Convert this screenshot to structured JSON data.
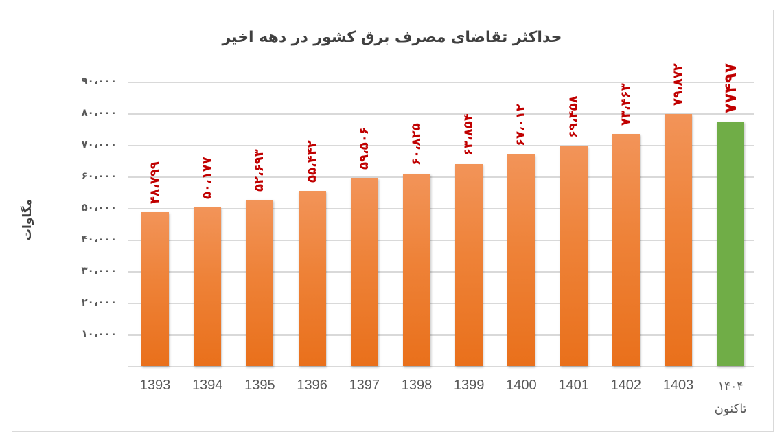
{
  "chart_data": {
    "type": "bar",
    "title": "حداکثر تقاضای مصرف برق کشور در دهه اخیر",
    "xlabel": "",
    "ylabel": "مگاوات",
    "ylim": [
      0,
      90000
    ],
    "yticks": [
      10000,
      20000,
      30000,
      40000,
      50000,
      60000,
      70000,
      80000,
      90000
    ],
    "ytick_labels": [
      "۱۰،۰۰۰",
      "۲۰،۰۰۰",
      "۳۰،۰۰۰",
      "۴۰،۰۰۰",
      "۵۰،۰۰۰",
      "۶۰،۰۰۰",
      "۷۰،۰۰۰",
      "۸۰،۰۰۰",
      "۹۰،۰۰۰"
    ],
    "grid": true,
    "legend": null,
    "categories": [
      "1393",
      "1394",
      "1395",
      "1396",
      "1397",
      "1398",
      "1399",
      "1400",
      "1401",
      "1402",
      "1403",
      "۱۴۰۴ تاکنون"
    ],
    "values": [
      48799,
      50177,
      52693,
      55442,
      59506,
      60825,
      63854,
      67012,
      69458,
      73463,
      79872,
      77497
    ],
    "data_labels": [
      "۴۸،۷۹۹",
      "۵۰،۱۷۷",
      "۵۲،۶۹۳",
      "۵۵،۴۴۲",
      "۵۹،۵۰۶",
      "۶۰،۸۲۵",
      "۶۳،۸۵۴",
      "۶۷،۰۱۲",
      "۶۹،۴۵۸",
      "۷۳،۴۶۳",
      "۷۹،۸۷۲",
      "۷۷۴۹۷"
    ],
    "bar_colors": [
      "#ED7D31",
      "#ED7D31",
      "#ED7D31",
      "#ED7D31",
      "#ED7D31",
      "#ED7D31",
      "#ED7D31",
      "#ED7D31",
      "#ED7D31",
      "#ED7D31",
      "#ED7D31",
      "#70AD47"
    ],
    "label_color": "#C00000"
  },
  "x_axis": {
    "labels": [
      "1393",
      "1394",
      "1395",
      "1396",
      "1397",
      "1398",
      "1399",
      "1400",
      "1401",
      "1402",
      "1403",
      "۱۴۰۴"
    ],
    "last_sublabel": "تاکنون"
  }
}
